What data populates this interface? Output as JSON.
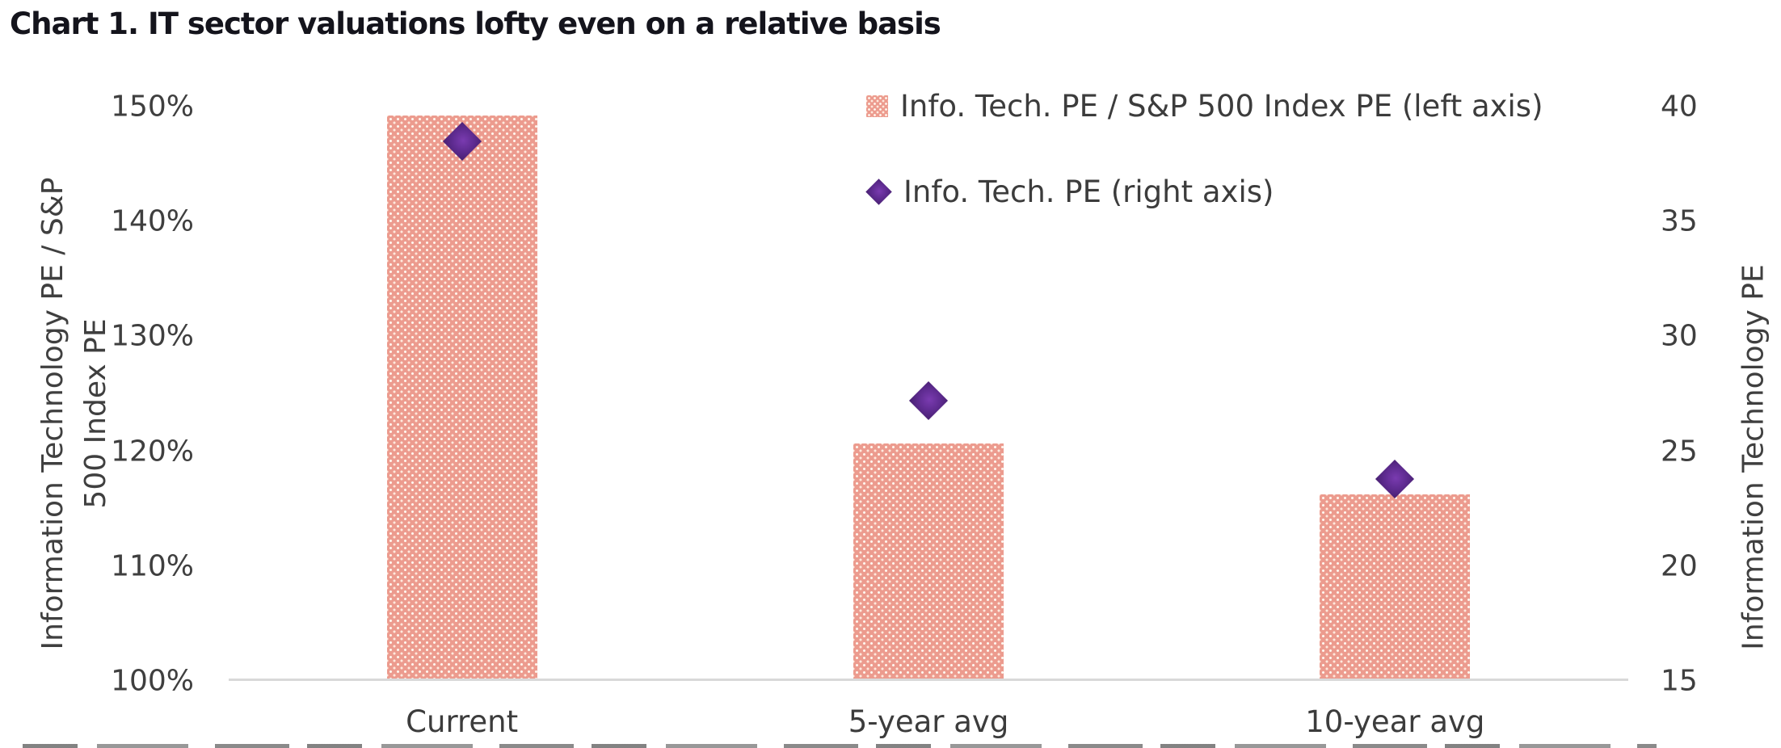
{
  "title": "Chart 1. IT sector valuations lofty even on a relative basis",
  "chart_data": {
    "type": "bar",
    "title": "Chart 1. IT sector valuations lofty even on a relative basis",
    "categories": [
      "Current",
      "5-year avg",
      "10-year avg"
    ],
    "series": [
      {
        "name": "Info. Tech. PE / S&P 500 Index PE (left axis)",
        "type": "bar",
        "axis": "left",
        "unit": "%",
        "values": [
          149,
          120.5,
          116
        ]
      },
      {
        "name": "Info. Tech. PE (right axis)",
        "type": "scatter",
        "marker": "diamond",
        "axis": "right",
        "values": [
          38.5,
          27.2,
          23.8
        ]
      }
    ],
    "left_axis": {
      "label": "Information Technology PE / S&P 500 Index PE",
      "label_lines": [
        "Information Technology PE / S&P",
        "500 Index PE"
      ],
      "ticks": [
        "150%",
        "140%",
        "130%",
        "120%",
        "110%",
        "100%"
      ],
      "min": 100,
      "max": 150
    },
    "right_axis": {
      "label": "Information Technology PE",
      "ticks": [
        "40",
        "35",
        "30",
        "25",
        "20",
        "15"
      ],
      "min": 15,
      "max": 40
    },
    "grid": false,
    "legend_position": "top-right",
    "colors": {
      "bar_fill": "#ec9b8e",
      "bar_pattern_dots": "#fff6ee",
      "diamond": "#5e2b90",
      "baseline": "#d9d9d9",
      "axis_text": "#3f3f3f",
      "title_text": "#14141c"
    }
  },
  "legend": {
    "items": [
      {
        "label": "Info. Tech. PE / S&P 500 Index PE (left axis)",
        "marker": "patterned-square"
      },
      {
        "label": "Info. Tech. PE (right axis)",
        "marker": "purple-diamond"
      }
    ]
  }
}
